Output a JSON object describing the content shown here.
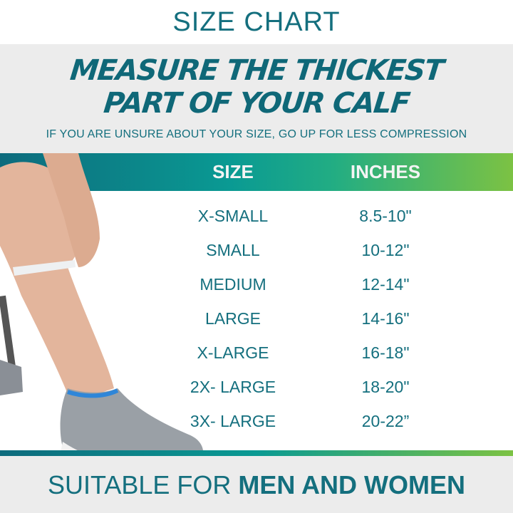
{
  "title": "SIZE CHART",
  "headline": [
    "MEASURE THE THICKEST",
    "PART OF YOUR CALF"
  ],
  "note": "IF YOU ARE UNSURE ABOUT YOUR SIZE, GO UP FOR LESS COMPRESSION",
  "table": {
    "columns": [
      "SIZE",
      "INCHES"
    ],
    "rows": [
      {
        "size": "X-SMALL",
        "inches": "8.5-10\""
      },
      {
        "size": "SMALL",
        "inches": "10-12\""
      },
      {
        "size": "MEDIUM",
        "inches": "12-14\""
      },
      {
        "size": "LARGE",
        "inches": "14-16\""
      },
      {
        "size": "X-LARGE",
        "inches": "16-18\""
      },
      {
        "size": "2X- LARGE",
        "inches": "18-20\""
      },
      {
        "size": "3X- LARGE",
        "inches": "20-22”"
      }
    ]
  },
  "footer": {
    "light": "SUITABLE FOR ",
    "bold": "MEN AND WOMEN"
  },
  "colors": {
    "teal": "#146f7e",
    "gradient_start": "#0d6b7d",
    "gradient_mid": "#0a9a93",
    "gradient_end": "#7cc243",
    "band": "#ececec"
  }
}
